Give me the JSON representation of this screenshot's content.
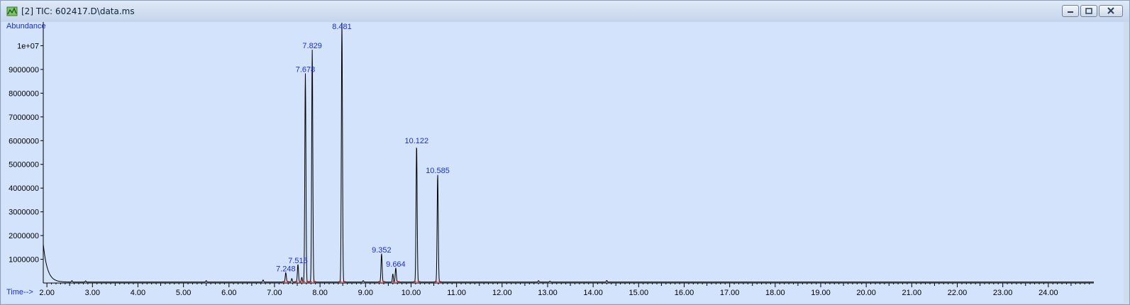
{
  "window": {
    "title": "[2] TIC: 602417.D\\data.ms",
    "icon": "chromatogram-icon",
    "controls": [
      "minimize-icon",
      "restore-icon",
      "close-icon"
    ]
  },
  "chart_data": {
    "type": "line",
    "ylabel": "Abundance",
    "xlabel": "Time-->",
    "xlim": [
      1.92,
      25.0
    ],
    "ylim": [
      0,
      11000000
    ],
    "x_ticks": [
      "2.00",
      "3.00",
      "4.00",
      "5.00",
      "6.00",
      "7.00",
      "8.00",
      "9.00",
      "10.00",
      "11.00",
      "12.00",
      "13.00",
      "14.00",
      "15.00",
      "16.00",
      "17.00",
      "18.00",
      "19.00",
      "20.00",
      "21.00",
      "22.00",
      "23.00",
      "24.00"
    ],
    "y_ticks": [
      "1000000",
      "2000000",
      "3000000",
      "4000000",
      "5000000",
      "6000000",
      "7000000",
      "8000000",
      "9000000",
      "1e+07"
    ],
    "grid": false,
    "series": [
      {
        "peaks": [
          {
            "rt": 7.248,
            "label": "7.248",
            "height": 400000
          },
          {
            "rt": 7.515,
            "label": "7.515",
            "height": 750000
          },
          {
            "rt": 7.678,
            "label": "7.678",
            "height": 8800000
          },
          {
            "rt": 7.829,
            "label": "7.829",
            "height": 9800000
          },
          {
            "rt": 8.481,
            "label": "8.481",
            "height": 10950000
          },
          {
            "rt": 9.352,
            "label": "9.352",
            "height": 1200000
          },
          {
            "rt": 9.664,
            "label": "9.664",
            "height": 600000
          },
          {
            "rt": 10.122,
            "label": "10.122",
            "height": 5800000
          },
          {
            "rt": 10.585,
            "label": "10.585",
            "height": 4550000
          }
        ]
      }
    ]
  }
}
